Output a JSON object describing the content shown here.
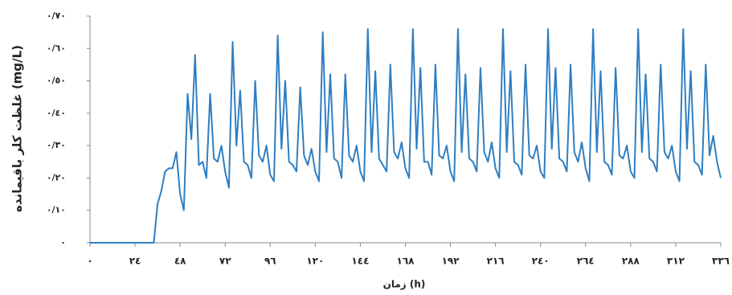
{
  "chart_data": {
    "type": "line",
    "y_label": "غلظت کلر باقیمانده (mg/L)",
    "x_label": "زمان (h)",
    "x": [
      0,
      34,
      36,
      38,
      40,
      42,
      44,
      46,
      48,
      50,
      52,
      54,
      56,
      58,
      60,
      62,
      64,
      66,
      68,
      70,
      72,
      74,
      76,
      78,
      80,
      82,
      84,
      86,
      88,
      90,
      92,
      94,
      96,
      98,
      100,
      102,
      104,
      106,
      108,
      110,
      112,
      114,
      116,
      118,
      120,
      122,
      124,
      126,
      128,
      130,
      132,
      134,
      136,
      138,
      140,
      142,
      144,
      146,
      148,
      150,
      152,
      154,
      156,
      158,
      160,
      162,
      164,
      166,
      168,
      170,
      172,
      174,
      176,
      178,
      180,
      182,
      184,
      186,
      188,
      190,
      192,
      194,
      196,
      198,
      200,
      202,
      204,
      206,
      208,
      210,
      212,
      214,
      216,
      218,
      220,
      222,
      224,
      226,
      228,
      230,
      232,
      234,
      236,
      238,
      240,
      242,
      244,
      246,
      248,
      250,
      252,
      254,
      256,
      258,
      260,
      262,
      264,
      266,
      268,
      270,
      272,
      274,
      276,
      278,
      280,
      282,
      284,
      286,
      288,
      290,
      292,
      294,
      296,
      298,
      300,
      302,
      304,
      306,
      308,
      310,
      312,
      314,
      316,
      318,
      320,
      322,
      324,
      326,
      328,
      330,
      332,
      334,
      336
    ],
    "series": [
      {
        "color": "#2f7ec1",
        "values": [
          0,
          0,
          0.12,
          0.16,
          0.22,
          0.23,
          0.23,
          0.28,
          0.15,
          0.1,
          0.46,
          0.32,
          0.58,
          0.24,
          0.25,
          0.2,
          0.46,
          0.26,
          0.25,
          0.3,
          0.22,
          0.17,
          0.62,
          0.3,
          0.47,
          0.25,
          0.24,
          0.2,
          0.5,
          0.27,
          0.25,
          0.3,
          0.21,
          0.19,
          0.64,
          0.29,
          0.5,
          0.25,
          0.24,
          0.22,
          0.48,
          0.27,
          0.24,
          0.29,
          0.22,
          0.19,
          0.65,
          0.28,
          0.52,
          0.26,
          0.25,
          0.2,
          0.52,
          0.27,
          0.25,
          0.3,
          0.22,
          0.19,
          0.66,
          0.28,
          0.53,
          0.26,
          0.24,
          0.22,
          0.55,
          0.28,
          0.26,
          0.31,
          0.23,
          0.2,
          0.66,
          0.29,
          0.54,
          0.25,
          0.25,
          0.21,
          0.55,
          0.27,
          0.26,
          0.3,
          0.22,
          0.19,
          0.66,
          0.28,
          0.52,
          0.26,
          0.25,
          0.22,
          0.54,
          0.28,
          0.25,
          0.31,
          0.23,
          0.2,
          0.66,
          0.28,
          0.53,
          0.25,
          0.24,
          0.21,
          0.55,
          0.27,
          0.26,
          0.3,
          0.22,
          0.2,
          0.66,
          0.29,
          0.54,
          0.26,
          0.25,
          0.22,
          0.55,
          0.28,
          0.25,
          0.31,
          0.23,
          0.19,
          0.66,
          0.28,
          0.53,
          0.25,
          0.24,
          0.21,
          0.54,
          0.27,
          0.26,
          0.3,
          0.22,
          0.2,
          0.66,
          0.28,
          0.52,
          0.26,
          0.25,
          0.22,
          0.55,
          0.28,
          0.26,
          0.3,
          0.22,
          0.19,
          0.66,
          0.29,
          0.53,
          0.25,
          0.24,
          0.21,
          0.55,
          0.27,
          0.33,
          0.25,
          0.2
        ]
      }
    ],
    "xlim": [
      0,
      336
    ],
    "ylim": [
      0,
      0.7
    ],
    "xticks": [
      {
        "value": 0,
        "label": "٠"
      },
      {
        "value": 24,
        "label": "٢٤"
      },
      {
        "value": 48,
        "label": "٤٨"
      },
      {
        "value": 72,
        "label": "٧٢"
      },
      {
        "value": 96,
        "label": "٩٦"
      },
      {
        "value": 120,
        "label": "١٢٠"
      },
      {
        "value": 144,
        "label": "١٤٤"
      },
      {
        "value": 168,
        "label": "١٦٨"
      },
      {
        "value": 192,
        "label": "١٩٢"
      },
      {
        "value": 216,
        "label": "٢١٦"
      },
      {
        "value": 240,
        "label": "٢٤٠"
      },
      {
        "value": 264,
        "label": "٢٦٤"
      },
      {
        "value": 288,
        "label": "٢٨٨"
      },
      {
        "value": 312,
        "label": "٣١٢"
      },
      {
        "value": 336,
        "label": "٣٣٦"
      }
    ],
    "yticks": [
      {
        "value": 0,
        "label": "٠"
      },
      {
        "value": 0.1,
        "label": "٠/١٠"
      },
      {
        "value": 0.2,
        "label": "٠/٢٠"
      },
      {
        "value": 0.3,
        "label": "٠/٣٠"
      },
      {
        "value": 0.4,
        "label": "٠/٤٠"
      },
      {
        "value": 0.5,
        "label": "٠/٥٠"
      },
      {
        "value": 0.6,
        "label": "٠/٦٠"
      },
      {
        "value": 0.7,
        "label": "٠/٧٠"
      }
    ]
  }
}
